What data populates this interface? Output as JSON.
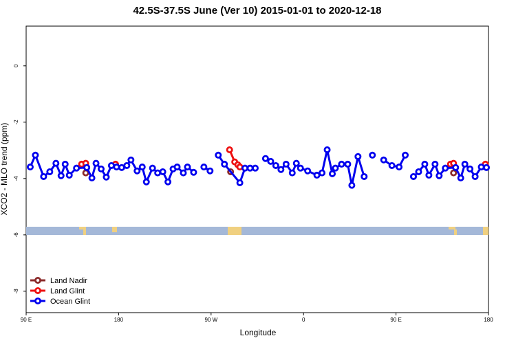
{
  "chart_data": {
    "type": "line",
    "title": "42.5S-37.5S June (Ver 10)   2015-01-01 to 2020-12-18",
    "x_label": "Longitude",
    "y_label": "XCO2 - MLO trend (ppm)",
    "xlim": [
      90,
      540
    ],
    "ylim": [
      -8.76,
      1.41
    ],
    "xticks": [
      {
        "value": 90,
        "label": "90 E"
      },
      {
        "value": 180,
        "label": "180"
      },
      {
        "value": 270,
        "label": "90 W"
      },
      {
        "value": 360,
        "label": "0"
      },
      {
        "value": 450,
        "label": "90 E"
      },
      {
        "value": 540,
        "label": "180"
      }
    ],
    "yticks": [
      0,
      -2,
      -4,
      -6,
      -8
    ],
    "legend": "bottom-left",
    "series": [
      {
        "name": "Land Nadir",
        "color": "#8b2a2a",
        "x": [
          148,
          160,
          177,
          230,
          289,
          400,
          506,
          520,
          537
        ],
        "values": [
          -3.8,
          null,
          -3.51,
          null,
          -3.76,
          null,
          -3.8,
          null,
          -3.59
        ]
      },
      {
        "name": "Land Glint",
        "color": "#ee1111",
        "x": [
          144,
          148,
          160,
          177,
          230,
          288,
          293,
          296,
          298,
          400,
          503,
          506,
          520,
          537
        ],
        "values": [
          -3.49,
          -3.46,
          null,
          -3.49,
          null,
          -2.98,
          -3.41,
          -3.51,
          -3.59,
          null,
          -3.49,
          -3.46,
          null,
          -3.49
        ]
      },
      {
        "name": "Ocean Glint",
        "color": "#0000ee",
        "x": [
          94,
          99,
          107,
          113,
          119,
          124,
          128,
          132,
          139,
          149,
          154,
          158,
          163,
          168,
          173,
          178,
          183,
          188,
          192,
          198,
          203,
          207,
          213,
          218,
          223,
          228,
          233,
          237,
          243,
          247,
          253,
          258,
          263,
          269,
          273,
          277,
          283,
          298,
          303,
          308,
          313,
          318,
          323,
          328,
          333,
          338,
          343,
          349,
          353,
          357,
          364,
          373,
          378,
          383,
          388,
          391,
          397,
          403,
          407,
          413,
          419,
          423,
          427,
          432,
          438,
          446,
          453,
          459,
          463,
          467,
          472,
          478,
          482,
          488,
          492,
          498,
          508,
          513,
          517,
          522,
          527,
          533,
          538
        ],
        "values": [
          -3.59,
          -3.17,
          -3.93,
          -3.76,
          -3.46,
          -3.9,
          -3.49,
          -3.88,
          -3.63,
          -3.61,
          -3.98,
          -3.46,
          -3.66,
          -3.95,
          -3.54,
          -3.59,
          -3.61,
          -3.54,
          -3.34,
          -3.73,
          -3.59,
          -4.12,
          -3.63,
          -3.8,
          -3.76,
          -4.12,
          -3.66,
          -3.59,
          -3.8,
          -3.59,
          -3.78,
          null,
          -3.59,
          -3.73,
          null,
          -3.17,
          -3.49,
          -4.15,
          -3.63,
          -3.63,
          -3.63,
          null,
          -3.29,
          -3.39,
          -3.54,
          -3.68,
          -3.49,
          -3.8,
          -3.46,
          -3.63,
          -3.73,
          -3.88,
          -3.8,
          -2.98,
          -3.83,
          -3.63,
          -3.49,
          -3.49,
          -4.24,
          -3.22,
          -3.93,
          null,
          -3.17,
          null,
          -3.34,
          -3.54,
          -3.59,
          -3.17,
          null,
          -3.93,
          -3.76,
          -3.49,
          -3.88,
          -3.49,
          -3.9,
          -3.63,
          -3.61,
          -3.98,
          -3.49,
          -3.66,
          -3.93,
          -3.59,
          -3.61
        ]
      }
    ]
  }
}
